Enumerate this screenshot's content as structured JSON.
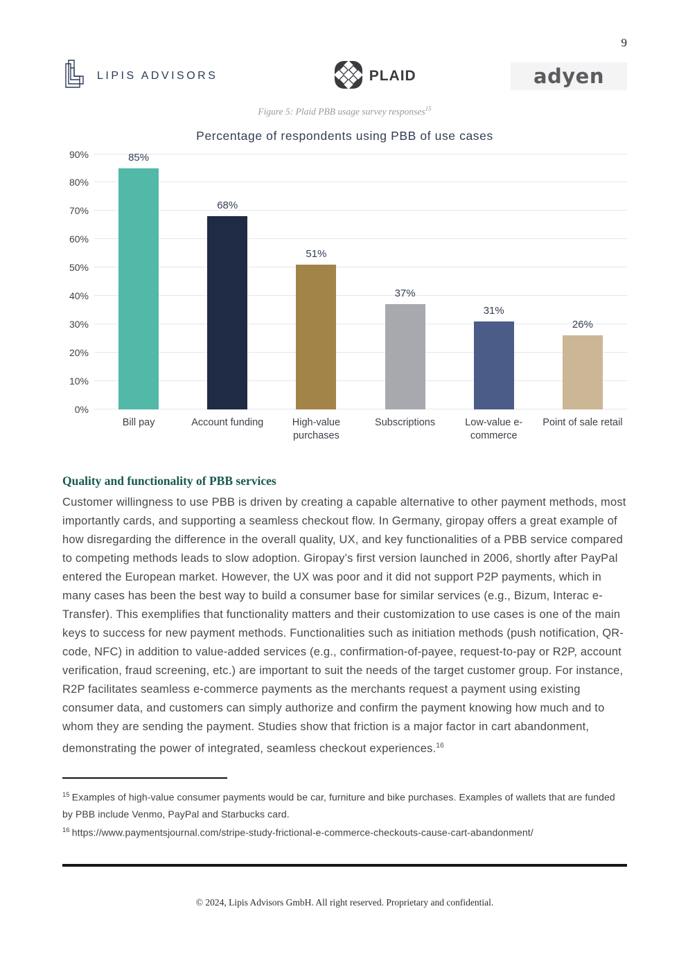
{
  "page": {
    "number": "9"
  },
  "header": {
    "logos": {
      "lipis": {
        "text": "LIPIS ADVISORS"
      },
      "plaid": {
        "text": "PLAID"
      },
      "adyen": {
        "text": "adyen"
      }
    }
  },
  "figure": {
    "caption": "Figure 5: Plaid PBB usage survey responses",
    "caption_ref": "15"
  },
  "chart_data": {
    "type": "bar",
    "title": "Percentage of respondents using PBB of use cases",
    "categories": [
      "Bill pay",
      "Account funding",
      "High-value purchases",
      "Subscriptions",
      "Low-value e-commerce",
      "Point of sale retail"
    ],
    "values": [
      85,
      68,
      51,
      37,
      31,
      26
    ],
    "data_labels": [
      "85%",
      "68%",
      "51%",
      "37%",
      "31%",
      "26%"
    ],
    "bar_colors": [
      "#52b8a8",
      "#1f2b44",
      "#a28449",
      "#a7a9ae",
      "#4c5c88",
      "#cbb795"
    ],
    "xlabel": "",
    "ylabel": "",
    "ylim": [
      0,
      90
    ],
    "yticks": [
      "0%",
      "10%",
      "20%",
      "30%",
      "40%",
      "50%",
      "60%",
      "70%",
      "80%",
      "90%"
    ],
    "grid": true,
    "legend": false
  },
  "section": {
    "heading": "Quality and functionality of PBB services",
    "paragraph": "Customer willingness to use PBB is driven by creating a capable alternative to other payment methods, most importantly cards, and supporting a seamless checkout flow. In Germany, giropay offers a great example of how disregarding the difference in the overall quality, UX, and key functionalities of a PBB service compared to competing methods leads to slow adoption. Giropay’s first version launched in 2006, shortly after PayPal entered the European market. However, the UX was poor and it did not support P2P payments, which in many cases has been the best way to build a consumer base for similar services (e.g., Bizum, Interac e-Transfer). This exemplifies that functionality matters and their customization to use cases is one of the main keys to success for new payment methods. Functionalities such as initiation methods (push notification, QR-code, NFC) in addition to value-added services (e.g., confirmation-of-payee, request-to-pay or R2P, account verification, fraud screening, etc.) are important to suit the needs of the target customer group. For instance, R2P facilitates seamless e-commerce payments as the merchants request a payment using existing consumer data, and customers can simply authorize and confirm the payment knowing how much and to whom they are sending the payment. Studies show that friction is a major factor in cart abandonment, demonstrating the power of integrated, seamless checkout experiences.",
    "paragraph_footnote_ref": "16"
  },
  "footnotes": [
    {
      "ref": "15",
      "text": "Examples of high-value consumer payments would be car, furniture and bike purchases. Examples of wallets that are funded by PBB include Venmo, PayPal and Starbucks card.",
      "link": false
    },
    {
      "ref": "16",
      "text": "https://www.paymentsjournal.com/stripe-study-frictional-e-commerce-checkouts-cause-cart-abandonment/",
      "link": true
    }
  ],
  "footer": {
    "text": "© 2024, Lipis Advisors GmbH. All right reserved. Proprietary and confidential."
  },
  "colors": {
    "heading_teal": "#17594f",
    "chart_text_navy": "#323d54",
    "grid": "#e4e6ea",
    "footer_rule": "#15161a"
  }
}
